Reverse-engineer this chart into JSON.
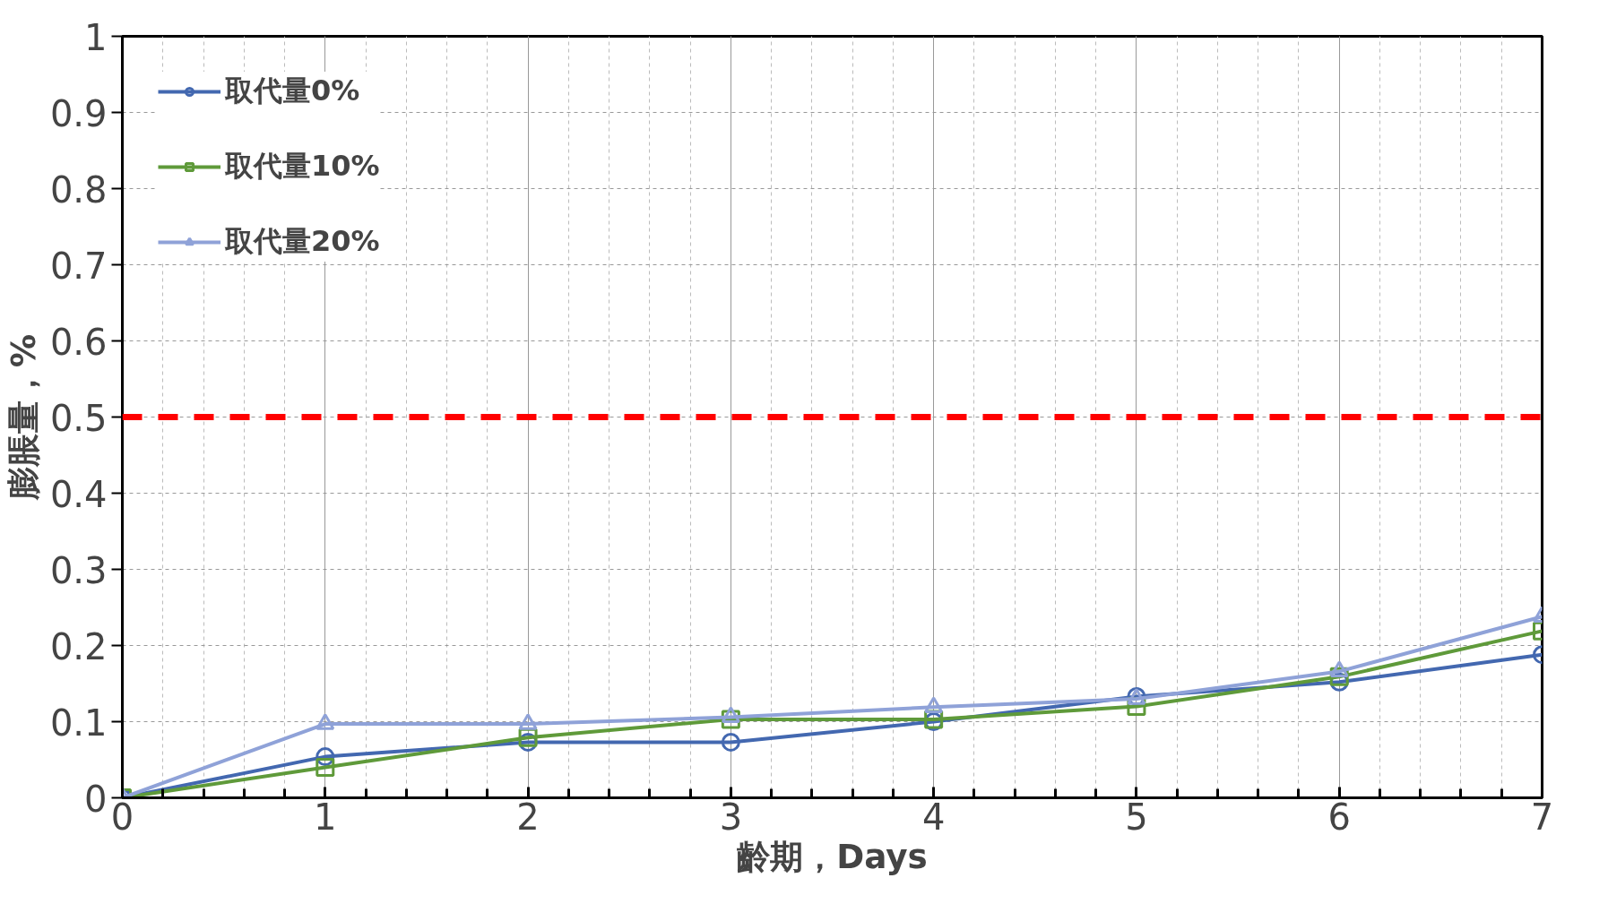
{
  "chart_data": {
    "type": "line",
    "xlabel": "齡期，Days",
    "ylabel": "膨脹量，%",
    "x": [
      0,
      1,
      2,
      3,
      4,
      5,
      6,
      7
    ],
    "series": [
      {
        "name": "取代量0%",
        "color": "#4368b0",
        "marker": "circle",
        "values": [
          0,
          0.054,
          0.073,
          0.073,
          0.1,
          0.133,
          0.152,
          0.188
        ]
      },
      {
        "name": "取代量10%",
        "color": "#5f9a3a",
        "marker": "square",
        "values": [
          0,
          0.04,
          0.079,
          0.103,
          0.103,
          0.12,
          0.159,
          0.219
        ]
      },
      {
        "name": "取代量20%",
        "color": "#8fa2d8",
        "marker": "triangle",
        "values": [
          0,
          0.097,
          0.097,
          0.106,
          0.119,
          0.13,
          0.166,
          0.238
        ]
      }
    ],
    "xlim": [
      0,
      7
    ],
    "xticks": [
      0,
      1,
      2,
      3,
      4,
      5,
      6,
      7
    ],
    "ylim": [
      0,
      1
    ],
    "yticks": [
      0,
      0.1,
      0.2,
      0.3,
      0.4,
      0.5,
      0.6,
      0.7,
      0.8,
      0.9,
      1
    ],
    "ref_lines": [
      {
        "axis": "y",
        "value": 0.5,
        "color": "#ff0000",
        "line_style": "dashed"
      }
    ],
    "grid": true,
    "legend": "top left",
    "line_style": "solid"
  }
}
